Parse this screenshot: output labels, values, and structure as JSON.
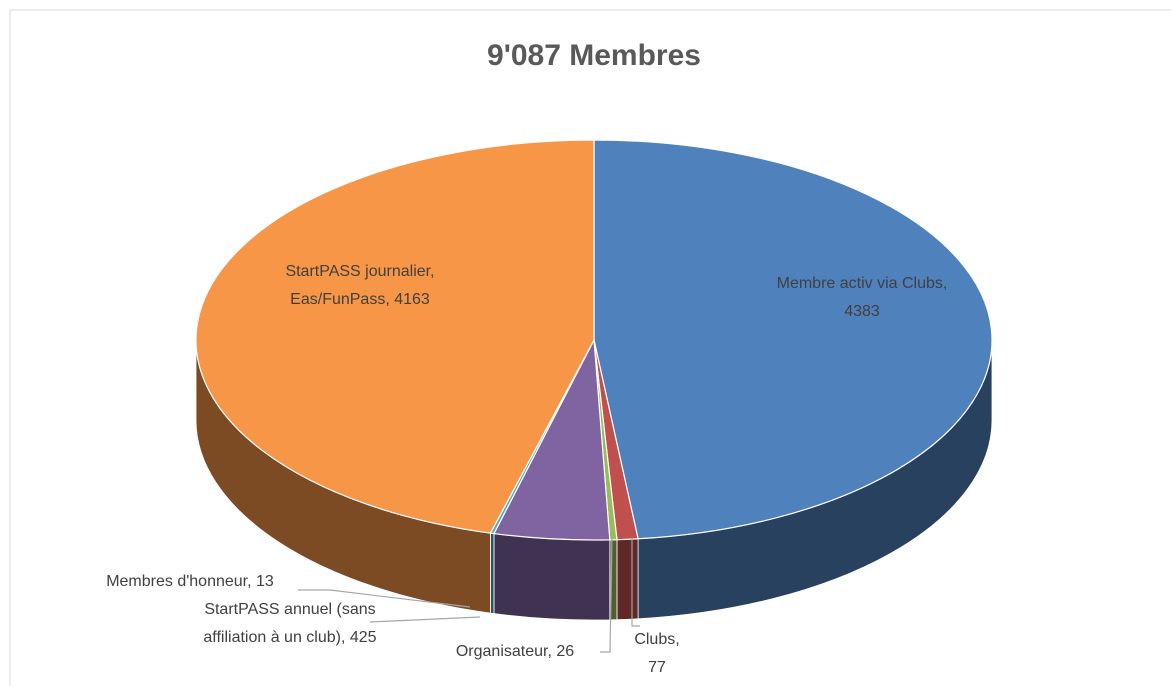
{
  "chart_data": {
    "type": "pie3d",
    "title": "9'087 Membres",
    "categories": [
      "Membre activ via Clubs",
      "Clubs",
      "Organisateur",
      "StartPASS annuel (sans affiliation à un club)",
      "Membres d'honneur",
      "StartPASS journalier, Eas/FunPass"
    ],
    "values": [
      4383,
      77,
      26,
      425,
      13,
      4163
    ],
    "colors": [
      "#4f81bd",
      "#c0504d",
      "#9bbb59",
      "#8064a2",
      "#4bacc6",
      "#f79646"
    ]
  }
}
